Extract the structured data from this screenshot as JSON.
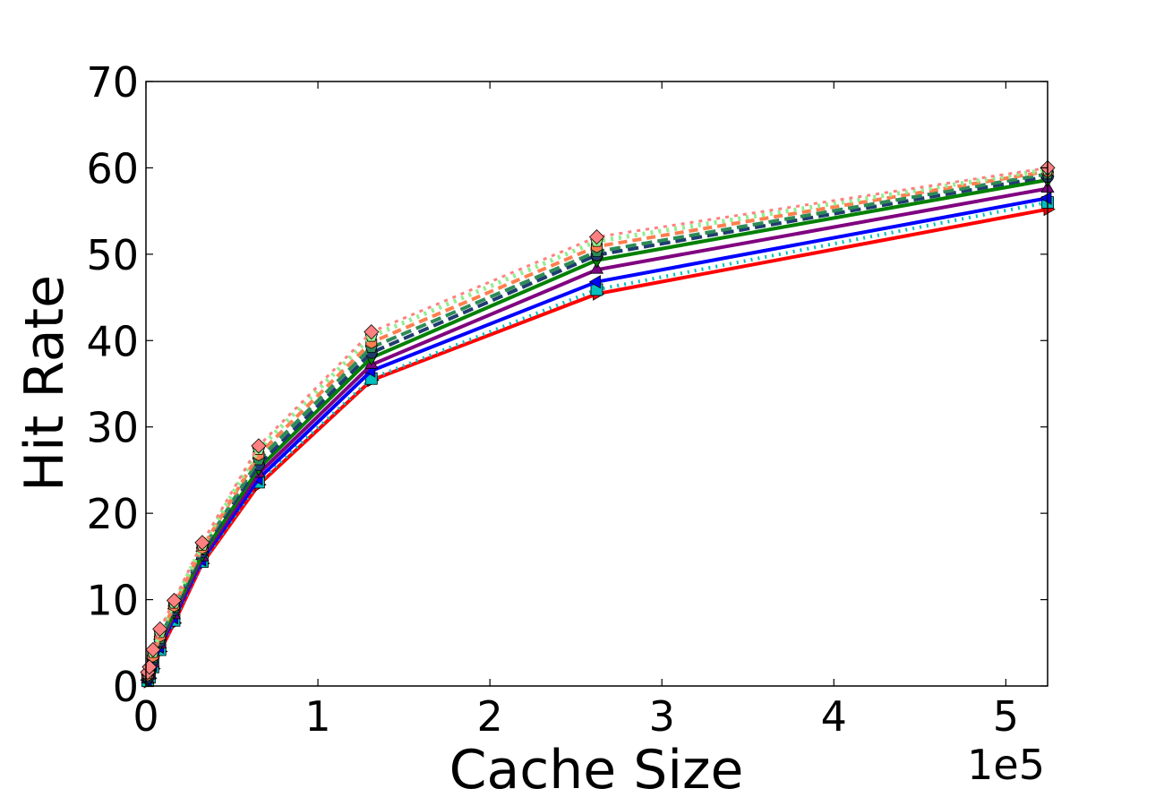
{
  "chart_data": {
    "type": "line",
    "xlabel": "Cache Size",
    "ylabel": "Hit Rate",
    "x_offset_label": "1e5",
    "xlim": [
      0,
      524288
    ],
    "ylim": [
      0,
      70
    ],
    "x_tick_values": [
      0,
      100000,
      200000,
      300000,
      400000,
      500000
    ],
    "x_tick_labels": [
      "0",
      "1",
      "2",
      "3",
      "4",
      "5"
    ],
    "y_tick_values": [
      0,
      10,
      20,
      30,
      40,
      50,
      60,
      70
    ],
    "y_tick_labels": [
      "0",
      "10",
      "20",
      "30",
      "40",
      "50",
      "60",
      "70"
    ],
    "grid": false,
    "legend": "none",
    "x": [
      1024,
      2048,
      4096,
      8192,
      16384,
      32768,
      65536,
      131072,
      262144,
      524288
    ],
    "series": [
      {
        "color": "#ff0000",
        "dash": "",
        "width": 4,
        "marker": "triangle-right",
        "values": [
          0.5,
          0.9,
          2.0,
          4.0,
          7.3,
          14.2,
          23.3,
          35.4,
          45.4,
          55.2
        ]
      },
      {
        "color": "#00bfbf",
        "dash": "2,6",
        "width": 4,
        "marker": "square",
        "values": [
          0.6,
          1.0,
          2.2,
          4.2,
          7.6,
          14.4,
          23.6,
          35.6,
          45.9,
          56.0
        ]
      },
      {
        "color": "#0000ff",
        "dash": "",
        "width": 4,
        "marker": "triangle-left",
        "values": [
          0.7,
          1.1,
          2.4,
          4.5,
          7.9,
          14.6,
          24.0,
          36.5,
          46.8,
          56.5
        ]
      },
      {
        "color": "#800080",
        "dash": "",
        "width": 4,
        "marker": "triangle-up",
        "values": [
          0.8,
          1.2,
          2.6,
          4.8,
          8.2,
          14.9,
          24.6,
          37.2,
          48.2,
          57.6
        ]
      },
      {
        "color": "#008000",
        "dash": "",
        "width": 4,
        "marker": "triangle-down",
        "values": [
          0.9,
          1.4,
          2.8,
          5.0,
          8.6,
          15.2,
          25.2,
          38.0,
          49.3,
          58.6
        ]
      },
      {
        "color": "#1f3b70",
        "dash": "12,6",
        "width": 4,
        "marker": "circle",
        "values": [
          1.0,
          1.5,
          3.0,
          5.2,
          8.8,
          15.5,
          25.6,
          38.6,
          49.9,
          59.0
        ]
      },
      {
        "color": "#2e8b57",
        "dash": "12,6",
        "width": 4,
        "marker": "pentagon",
        "values": [
          1.2,
          1.7,
          3.3,
          5.5,
          9.1,
          15.8,
          26.2,
          39.2,
          50.3,
          59.3
        ]
      },
      {
        "color": "#ff7f50",
        "dash": "10,6",
        "width": 4,
        "marker": "hexagon",
        "values": [
          1.3,
          1.8,
          3.5,
          5.8,
          9.3,
          16.0,
          26.8,
          39.8,
          50.9,
          59.6
        ]
      },
      {
        "color": "#90ee90",
        "dash": "3,6",
        "width": 5,
        "marker": "pentagon",
        "values": [
          1.5,
          2.0,
          3.9,
          6.2,
          9.6,
          16.3,
          27.4,
          40.5,
          51.5,
          59.8
        ]
      },
      {
        "color": "#ff8080",
        "dash": "4,6",
        "width": 3,
        "marker": "diamond",
        "values": [
          1.6,
          2.2,
          4.2,
          6.6,
          9.9,
          16.6,
          27.8,
          41.0,
          52.0,
          60.0
        ]
      }
    ]
  }
}
